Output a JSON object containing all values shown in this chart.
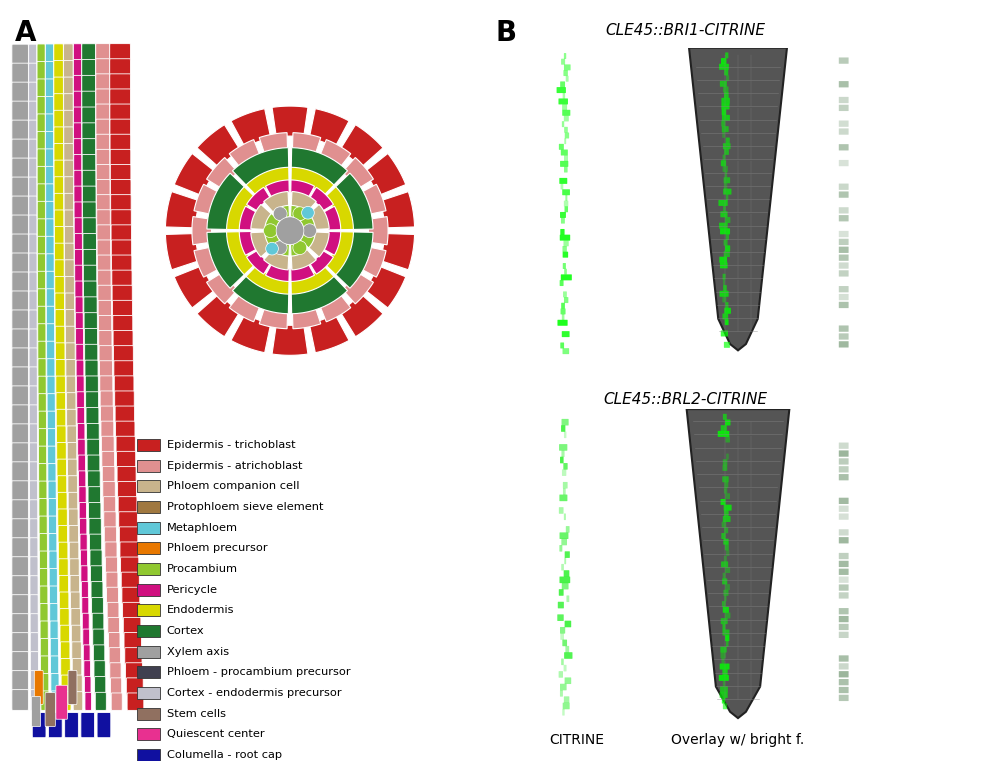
{
  "panel_A_label": "A",
  "panel_B_label": "B",
  "legend_items": [
    {
      "label": "Epidermis - trichoblast",
      "color": "#c82020"
    },
    {
      "label": "Epidermis - atrichoblast",
      "color": "#e09090"
    },
    {
      "label": "Phloem companion cell",
      "color": "#c8b48c"
    },
    {
      "label": "Protophloem sieve element",
      "color": "#a07840"
    },
    {
      "label": "Metaphloem",
      "color": "#60c8d8"
    },
    {
      "label": "Phloem precursor",
      "color": "#e87800"
    },
    {
      "label": "Procambium",
      "color": "#90c830"
    },
    {
      "label": "Pericycle",
      "color": "#d01080"
    },
    {
      "label": "Endodermis",
      "color": "#d8d800"
    },
    {
      "label": "Cortex",
      "color": "#207830"
    },
    {
      "label": "Xylem axis",
      "color": "#a0a0a0"
    },
    {
      "label": "Phloem - procambium precursor",
      "color": "#404050"
    },
    {
      "label": "Cortex - endodermis precursor",
      "color": "#c0c0cc"
    },
    {
      "label": "Stem cells",
      "color": "#907060"
    },
    {
      "label": "Quiescent center",
      "color": "#e83090"
    },
    {
      "label": "Columella - root cap",
      "color": "#1010a0"
    }
  ],
  "bri1_title": "CLE45::BRI1-CITRINE",
  "brl2_title": "CLE45::BRL2-CITRINE",
  "citrine_label": "CITRINE",
  "overlay_label": "Overlay w/ bright f.",
  "bg_color": "#ffffff"
}
